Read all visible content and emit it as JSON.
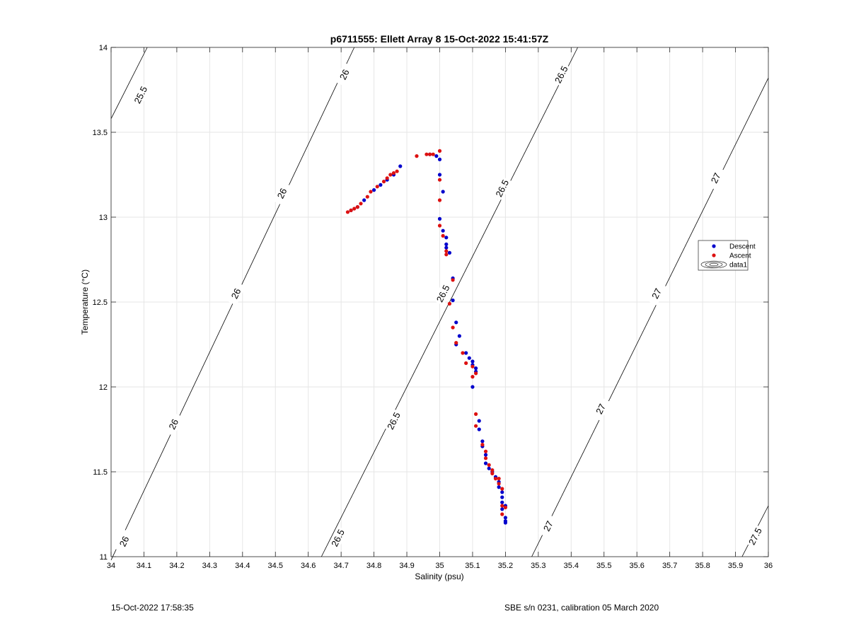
{
  "chart_data": {
    "type": "scatter",
    "title": "p6711555: Ellett Array 8 15-Oct-2022 15:41:57Z",
    "xlabel": "Salinity (psu)",
    "ylabel": "Temperature (°C)",
    "xlim": [
      34,
      36
    ],
    "ylim": [
      11,
      14
    ],
    "x_ticks": [
      "34",
      "34.1",
      "34.2",
      "34.3",
      "34.4",
      "34.5",
      "34.6",
      "34.7",
      "34.8",
      "34.9",
      "35",
      "35.1",
      "35.2",
      "35.3",
      "35.4",
      "35.5",
      "35.6",
      "35.7",
      "35.8",
      "35.9",
      "36"
    ],
    "y_ticks": [
      "11",
      "11.5",
      "12",
      "12.5",
      "13",
      "13.5",
      "14"
    ],
    "grid": true,
    "legend_position": "right",
    "legend": [
      {
        "label": "Descent",
        "color": "#0000cc",
        "marker": "dot"
      },
      {
        "label": "Ascent",
        "color": "#dd1111",
        "marker": "dot"
      },
      {
        "label": "data1",
        "marker": "contour"
      }
    ],
    "density_contours": [
      {
        "label": "25.5",
        "segments": [
          [
            [
              34.0,
              13.58
            ],
            [
              34.11,
              14.0
            ]
          ]
        ],
        "label_positions": [
          [
            34.09,
            13.72
          ]
        ]
      },
      {
        "label": "26",
        "segments": [
          [
            [
              34.0,
              10.98
            ],
            [
              34.74,
              14.0
            ]
          ]
        ],
        "label_positions": [
          [
            34.04,
            11.09
          ],
          [
            34.19,
            11.78
          ],
          [
            34.38,
            12.55
          ],
          [
            34.52,
            13.14
          ],
          [
            34.71,
            13.84
          ]
        ]
      },
      {
        "label": "26.5",
        "segments": [
          [
            [
              34.64,
              11.0
            ],
            [
              35.42,
              14.0
            ]
          ]
        ],
        "label_positions": [
          [
            34.69,
            11.11
          ],
          [
            34.86,
            11.8
          ],
          [
            35.01,
            12.55
          ],
          [
            35.19,
            13.17
          ],
          [
            35.37,
            13.84
          ]
        ]
      },
      {
        "label": "27",
        "segments": [
          [
            [
              35.28,
              11.0
            ],
            [
              36.0,
              13.82
            ]
          ]
        ],
        "label_positions": [
          [
            35.33,
            11.18
          ],
          [
            35.49,
            11.87
          ],
          [
            35.66,
            12.55
          ],
          [
            35.84,
            13.23
          ]
        ]
      },
      {
        "label": "27.5",
        "segments": [
          [
            [
              35.92,
              11.0
            ],
            [
              36.0,
              11.3
            ]
          ]
        ],
        "label_positions": [
          [
            35.96,
            11.12
          ]
        ]
      }
    ],
    "series": [
      {
        "name": "Descent",
        "color": "#0000cc",
        "points": [
          [
            34.73,
            13.04
          ],
          [
            34.75,
            13.06
          ],
          [
            34.77,
            13.1
          ],
          [
            34.8,
            13.16
          ],
          [
            34.82,
            13.19
          ],
          [
            34.84,
            13.22
          ],
          [
            34.86,
            13.25
          ],
          [
            34.88,
            13.3
          ],
          [
            34.97,
            13.37
          ],
          [
            34.99,
            13.36
          ],
          [
            35.0,
            13.34
          ],
          [
            35.0,
            13.25
          ],
          [
            35.01,
            13.15
          ],
          [
            35.0,
            12.99
          ],
          [
            35.01,
            12.92
          ],
          [
            35.02,
            12.88
          ],
          [
            35.02,
            12.84
          ],
          [
            35.02,
            12.82
          ],
          [
            35.03,
            12.79
          ],
          [
            35.04,
            12.64
          ],
          [
            35.04,
            12.51
          ],
          [
            35.05,
            12.38
          ],
          [
            35.06,
            12.3
          ],
          [
            35.05,
            12.25
          ],
          [
            35.08,
            12.2
          ],
          [
            35.09,
            12.17
          ],
          [
            35.1,
            12.15
          ],
          [
            35.1,
            12.13
          ],
          [
            35.11,
            12.11
          ],
          [
            35.11,
            12.09
          ],
          [
            35.1,
            12.0
          ],
          [
            35.12,
            11.8
          ],
          [
            35.12,
            11.75
          ],
          [
            35.13,
            11.68
          ],
          [
            35.13,
            11.65
          ],
          [
            35.14,
            11.6
          ],
          [
            35.14,
            11.55
          ],
          [
            35.15,
            11.52
          ],
          [
            35.16,
            11.5
          ],
          [
            35.17,
            11.47
          ],
          [
            35.18,
            11.44
          ],
          [
            35.18,
            11.41
          ],
          [
            35.19,
            11.38
          ],
          [
            35.19,
            11.35
          ],
          [
            35.19,
            11.32
          ],
          [
            35.2,
            11.3
          ],
          [
            35.19,
            11.28
          ],
          [
            35.2,
            11.23
          ],
          [
            35.2,
            11.21
          ],
          [
            35.2,
            11.2
          ]
        ]
      },
      {
        "name": "Ascent",
        "color": "#dd1111",
        "points": [
          [
            34.72,
            13.03
          ],
          [
            34.73,
            13.04
          ],
          [
            34.74,
            13.05
          ],
          [
            34.75,
            13.06
          ],
          [
            34.76,
            13.08
          ],
          [
            34.78,
            13.12
          ],
          [
            34.79,
            13.15
          ],
          [
            34.81,
            13.18
          ],
          [
            34.83,
            13.21
          ],
          [
            34.84,
            13.23
          ],
          [
            34.85,
            13.25
          ],
          [
            34.86,
            13.26
          ],
          [
            34.87,
            13.27
          ],
          [
            34.93,
            13.36
          ],
          [
            34.96,
            13.37
          ],
          [
            34.97,
            13.37
          ],
          [
            34.98,
            13.37
          ],
          [
            35.0,
            13.39
          ],
          [
            35.0,
            13.22
          ],
          [
            35.0,
            13.1
          ],
          [
            35.0,
            12.95
          ],
          [
            35.01,
            12.89
          ],
          [
            35.02,
            12.8
          ],
          [
            35.02,
            12.78
          ],
          [
            35.04,
            12.63
          ],
          [
            35.03,
            12.49
          ],
          [
            35.04,
            12.35
          ],
          [
            35.05,
            12.26
          ],
          [
            35.07,
            12.2
          ],
          [
            35.08,
            12.14
          ],
          [
            35.1,
            12.12
          ],
          [
            35.11,
            12.08
          ],
          [
            35.1,
            12.06
          ],
          [
            35.11,
            11.84
          ],
          [
            35.11,
            11.77
          ],
          [
            35.13,
            11.66
          ],
          [
            35.14,
            11.62
          ],
          [
            35.14,
            11.58
          ],
          [
            35.15,
            11.54
          ],
          [
            35.16,
            11.51
          ],
          [
            35.16,
            11.49
          ],
          [
            35.17,
            11.46
          ],
          [
            35.18,
            11.46
          ],
          [
            35.18,
            11.43
          ],
          [
            35.19,
            11.4
          ],
          [
            35.19,
            11.3
          ],
          [
            35.2,
            11.29
          ],
          [
            35.19,
            11.25
          ]
        ]
      }
    ]
  },
  "footer": {
    "timestamp": "15-Oct-2022 17:58:35",
    "calibration": "SBE s/n 0231, calibration 05 March 2020"
  }
}
